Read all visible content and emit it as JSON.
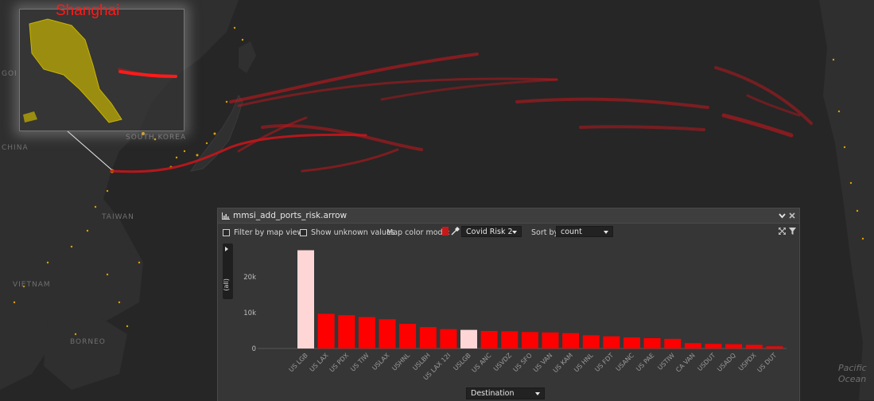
{
  "map": {
    "inset_title": "Shanghai",
    "labels": {
      "china": "CHINA",
      "south_korea": "SOUTH KOREA",
      "taiwan": "TAIWAN",
      "vietnam": "VIETNAM",
      "borneo": "BORNEO",
      "goi": "GOI",
      "pacific_ocean_1": "Pacific",
      "pacific_ocean_2": "Ocean"
    },
    "colors": {
      "background": "#262626",
      "land": "#2e2e2e",
      "route": "#c4161c",
      "ports": "#e0a000",
      "region": "#c8b400"
    }
  },
  "panel": {
    "title": "mmsi_add_ports_risk.arrow",
    "filter_by_map_view": "Filter by map view",
    "show_unknown_values": "Show unknown values",
    "map_color_mode_label": "Map color mode:",
    "map_color_mode_value": "Covid Risk 2",
    "sort_by_label": "Sort by:",
    "sort_by_value": "count",
    "side_label": "(all)",
    "destination_select": "Destination",
    "icons": {
      "chart": "bar-chart-icon",
      "collapse": "chevron-down-icon",
      "close": "close-icon",
      "picker": "eyedropper-icon",
      "expand": "expand-icon",
      "filter": "filter-icon"
    }
  },
  "chart_data": {
    "type": "bar",
    "categories": [
      "US LGB",
      "US LAX",
      "US PDX",
      "US TIW",
      "USLAX",
      "USHNL",
      "USLBH",
      "US LAX 12I",
      "USLGB",
      "US ANC",
      "USVDZ",
      "US SFO",
      "US VAN",
      "US KAM",
      "US HNL",
      "US FDT",
      "USANC",
      "US PAE",
      "USTIW",
      "CA VAN",
      "USDUT",
      "USADQ",
      "USPDX",
      "US DUT"
    ],
    "values": [
      27500,
      9700,
      9300,
      8800,
      8200,
      6900,
      6000,
      5400,
      5200,
      4900,
      4800,
      4600,
      4500,
      4300,
      3700,
      3400,
      3100,
      2900,
      2700,
      1500,
      1300,
      1200,
      1000,
      600
    ],
    "highlighted": [
      "US LGB",
      "USLGB"
    ],
    "colors": {
      "default": "#ff0000",
      "highlighted": "#ffd6d6"
    },
    "yticks": [
      "0",
      "10k",
      "20k"
    ],
    "ytick_values": [
      0,
      10000,
      20000
    ],
    "ylim": [
      0,
      28500
    ]
  }
}
